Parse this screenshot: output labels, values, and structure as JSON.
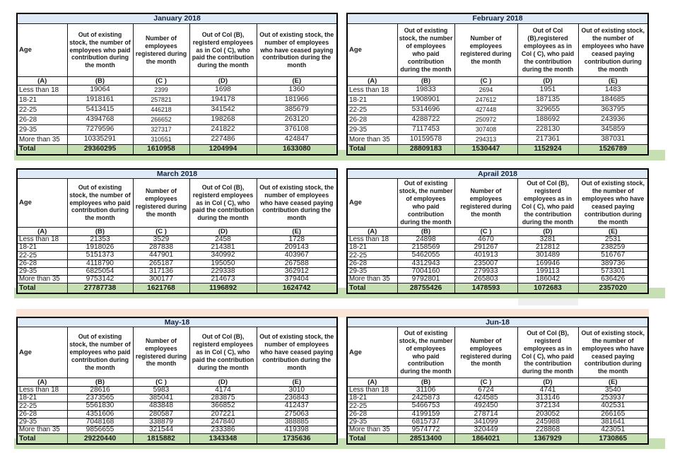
{
  "colors": {
    "title_bar": "#deebf7",
    "total_row": "#c6e0b4",
    "divider_band": "#fce4d6",
    "table_border": "#000000"
  },
  "tables": [
    {
      "title": "January 2018",
      "side": "left",
      "group": 1,
      "c_small": true,
      "total_bold": true,
      "headers": {
        "age": "Age",
        "b": "Out of existing stock, the number of employees who paid contribution during the month",
        "c": "Number of employees registered during the month",
        "d": "Out of Col (B), registerd employees as in Col ( C), who paid the contribution during the month",
        "e": "Out of existing stock, the number of  employees who have ceased paying contribution during the month"
      },
      "letters": [
        "(A)",
        "(B)",
        "(C )",
        "(D)",
        "(E)"
      ],
      "rows": [
        [
          "Less than 18",
          "19064",
          "2399",
          "1698",
          "1360"
        ],
        [
          "18-21",
          "1918161",
          "257821",
          "194178",
          "181966"
        ],
        [
          "22-25",
          "5413415",
          "446218",
          "341542",
          "385679"
        ],
        [
          "26-28",
          "4394768",
          "266652",
          "198268",
          "263120"
        ],
        [
          "29-35",
          "7279596",
          "327317",
          "241822",
          "376108"
        ],
        [
          "More than 35",
          "10335291",
          "310551",
          "227486",
          "424847"
        ]
      ],
      "total": [
        "Total",
        "29360295",
        "1610958",
        "1204994",
        "1633080"
      ]
    },
    {
      "title": "February 2018",
      "side": "right",
      "group": 1,
      "c_small": true,
      "total_bold": true,
      "headers": {
        "age": "Age",
        "b": "Out of existing stock, the number of employees who paid contribution during the month",
        "c": "Number of employees registered during the month",
        "d": "Out of Col (B),registered employees as in Col ( C), who paid the contribution during the month",
        "e": "Out of existing stock, the number of employees  who have ceased paying contribution during the month"
      },
      "letters": [
        "(A)",
        "(B)",
        "(C )",
        "(D)",
        "(E)"
      ],
      "rows": [
        [
          "Less than 18",
          "19833",
          "2694",
          "1951",
          "1483"
        ],
        [
          "18-21",
          "1908901",
          "247612",
          "187135",
          "184685"
        ],
        [
          "22-25",
          "5314696",
          "427448",
          "329655",
          "363795"
        ],
        [
          "26-28",
          "4288722",
          "250972",
          "188692",
          "243936"
        ],
        [
          "29-35",
          "7117453",
          "307408",
          "228130",
          "345859"
        ],
        [
          "More than 35",
          "10159578",
          "294313",
          "217361",
          "387031"
        ]
      ],
      "total": [
        "Total",
        "28809183",
        "1530447",
        "1152924",
        "1526789"
      ]
    },
    {
      "title": "March 2018",
      "side": "left",
      "group": 2,
      "c_small": false,
      "total_bold": true,
      "headers": {
        "age": "Age",
        "b": "Out of existing stock, the number of employees who paid contribution during the month",
        "c": "Number of employees registered during the month",
        "d": "Out of Col (B), registerd employees as in Col ( C), who paid the contribution during the month",
        "e": "Out of existing stock, the number of  employees who have ceased paying contribution during the month"
      },
      "letters": [
        "(A)",
        "(B)",
        "(C )",
        "(D)",
        "(E)"
      ],
      "rows": [
        [
          "Less than 18",
          "21353",
          "3529",
          "2458",
          "1728"
        ],
        [
          "18-21",
          "1918026",
          "287838",
          "214381",
          "209143"
        ],
        [
          "22-25",
          "5151373",
          "447901",
          "340992",
          "403967"
        ],
        [
          "26-28",
          "4118790",
          "265187",
          "195050",
          "267588"
        ],
        [
          "29-35",
          "6825054",
          "317136",
          "229338",
          "362912"
        ],
        [
          "More than 35",
          "9753142",
          "300177",
          "214673",
          "379404"
        ]
      ],
      "total": [
        "Total",
        "27787738",
        "1621768",
        "1196892",
        "1624742"
      ]
    },
    {
      "title": "Aprail 2018",
      "side": "right",
      "group": 2,
      "c_small": false,
      "total_bold": false,
      "headers": {
        "age": "Age",
        "b": "Out of existing stock, the number of employees who paid contribution during the month",
        "c": "Number of employees registered during the month",
        "d": "Out of Col (B), registerd employees as in Col ( C), who paid the contribution during the month",
        "e": "Out of existing stock, the number of employees  who have ceased paying contribution during the month"
      },
      "letters": [
        "(A)",
        "(B)",
        "(C )",
        "(D)",
        "(E)"
      ],
      "rows": [
        [
          "Less than 18",
          "24898",
          "4670",
          "3281",
          "2531"
        ],
        [
          "18-21",
          "2158569",
          "291267",
          "212812",
          "238259"
        ],
        [
          "22-25",
          "5462055",
          "401913",
          "301489",
          "516767"
        ],
        [
          "26-28",
          "4312943",
          "235007",
          "169946",
          "389736"
        ],
        [
          "29-35",
          "7004160",
          "279933",
          "199113",
          "573301"
        ],
        [
          "More than 35",
          "9792801",
          "265803",
          "186042",
          "636426"
        ]
      ],
      "total": [
        "Total",
        "28755426",
        "1478593",
        "1072683",
        "2357020"
      ]
    },
    {
      "title": "May-18",
      "side": "left",
      "group": 3,
      "c_small": false,
      "total_bold": true,
      "headers": {
        "age": "Age",
        "b": "Out of existing stock, the number of employees who paid contribution during the month",
        "c": "Number of employees registered during the month",
        "d": "Out of Col (B), registerd employees as in Col ( C), who paid the contribution during the month",
        "e": "Out of existing stock, the number of  employees who have ceased paying contribution during the month"
      },
      "letters": [
        "(A)",
        "(B)",
        "(C )",
        "(D)",
        "(E)"
      ],
      "rows": [
        [
          "Less than 18",
          "28616",
          "5983",
          "4174",
          "3010"
        ],
        [
          "18-21",
          "2373565",
          "385041",
          "283875",
          "236843"
        ],
        [
          "22-25",
          "5561830",
          "483848",
          "366852",
          "412437"
        ],
        [
          "26-28",
          "4351606",
          "280587",
          "207221",
          "275063"
        ],
        [
          "29-35",
          "7048168",
          "338879",
          "247840",
          "388885"
        ],
        [
          "More than 35",
          "9856655",
          "321544",
          "233386",
          "419398"
        ]
      ],
      "total": [
        "Total",
        "29220440",
        "1815882",
        "1343348",
        "1735636"
      ]
    },
    {
      "title": "Jun-18",
      "side": "right",
      "group": 3,
      "c_small": false,
      "total_bold": true,
      "headers": {
        "age": "Age",
        "b": "Out of existing stock, the number of employees who paid contribution during the month",
        "c": "Number of employees registered during the month",
        "d": "Out of Col (B), registerd employees as in Col ( C), who paid the contribution during the month",
        "e": "Out of existing stock, the number of employees  who have ceased paying contribution during the month"
      },
      "letters": [
        "(A)",
        "(B)",
        "(C )",
        "(D)",
        "(E)"
      ],
      "rows": [
        [
          "Less than 18",
          "31106",
          "6724",
          "4741",
          "3540"
        ],
        [
          "18-21",
          "2425873",
          "424585",
          "313146",
          "253937"
        ],
        [
          "22-25",
          "5466753",
          "492450",
          "372134",
          "402531"
        ],
        [
          "26-28",
          "4199159",
          "278714",
          "203052",
          "266165"
        ],
        [
          "29-35",
          "6815737",
          "341099",
          "245988",
          "381641"
        ],
        [
          "More than 35",
          "9574772",
          "320449",
          "228868",
          "423051"
        ]
      ],
      "total": [
        "Total",
        "28513400",
        "1864021",
        "1367929",
        "1730865"
      ]
    }
  ]
}
